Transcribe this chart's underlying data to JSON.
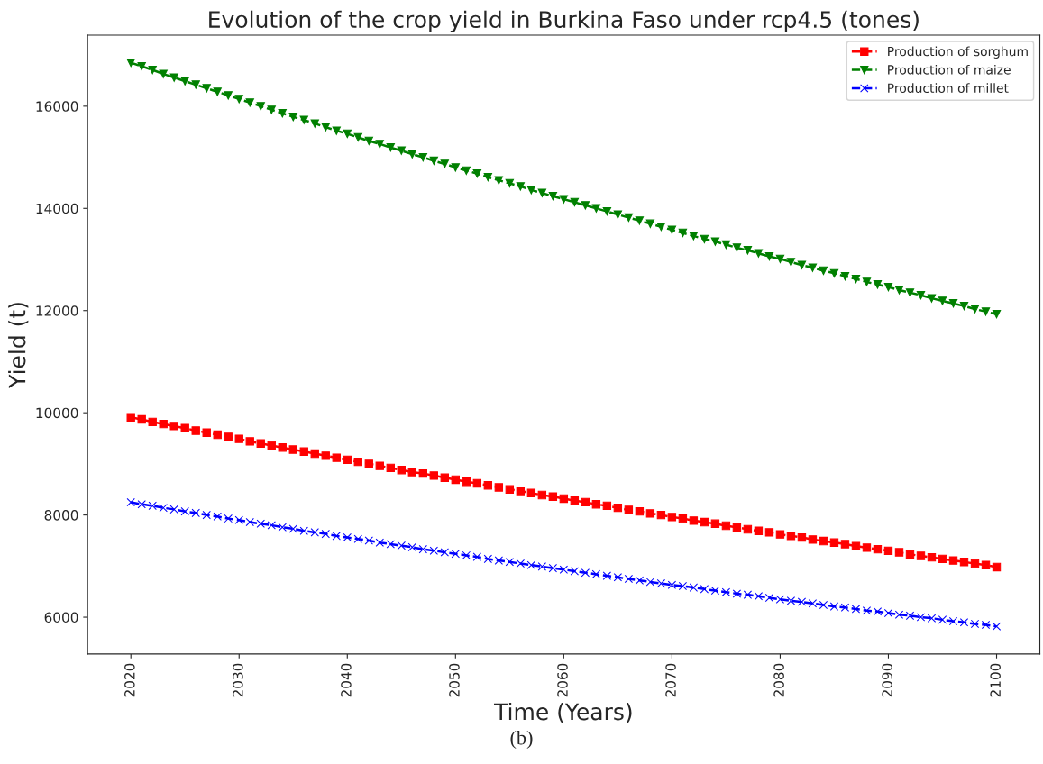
{
  "chart_data": {
    "type": "line",
    "title": "Evolution of the crop yield in Burkina Faso under rcp4.5 (tones)",
    "xlabel": "Time (Years)",
    "ylabel": "Yield (t)",
    "x": [
      2020,
      2021,
      2022,
      2023,
      2024,
      2025,
      2026,
      2027,
      2028,
      2029,
      2030,
      2031,
      2032,
      2033,
      2034,
      2035,
      2036,
      2037,
      2038,
      2039,
      2040,
      2041,
      2042,
      2043,
      2044,
      2045,
      2046,
      2047,
      2048,
      2049,
      2050,
      2051,
      2052,
      2053,
      2054,
      2055,
      2056,
      2057,
      2058,
      2059,
      2060,
      2061,
      2062,
      2063,
      2064,
      2065,
      2066,
      2067,
      2068,
      2069,
      2070,
      2071,
      2072,
      2073,
      2074,
      2075,
      2076,
      2077,
      2078,
      2079,
      2080,
      2081,
      2082,
      2083,
      2084,
      2085,
      2086,
      2087,
      2088,
      2089,
      2090,
      2091,
      2092,
      2093,
      2094,
      2095,
      2096,
      2097,
      2098,
      2099,
      2100
    ],
    "series": [
      {
        "name": "Production of sorghum",
        "color": "#ff0000",
        "marker": "square",
        "line_style": "dashed",
        "values": [
          9910,
          9870,
          9820,
          9780,
          9740,
          9700,
          9650,
          9610,
          9570,
          9530,
          9490,
          9440,
          9400,
          9360,
          9320,
          9280,
          9240,
          9200,
          9160,
          9120,
          9080,
          9040,
          9000,
          8960,
          8920,
          8880,
          8840,
          8810,
          8770,
          8730,
          8690,
          8650,
          8620,
          8580,
          8540,
          8500,
          8470,
          8430,
          8390,
          8360,
          8320,
          8280,
          8250,
          8210,
          8180,
          8140,
          8100,
          8070,
          8030,
          8000,
          7960,
          7930,
          7890,
          7860,
          7830,
          7790,
          7760,
          7720,
          7690,
          7660,
          7620,
          7590,
          7560,
          7520,
          7490,
          7460,
          7430,
          7390,
          7360,
          7330,
          7300,
          7270,
          7230,
          7200,
          7170,
          7140,
          7110,
          7080,
          7050,
          7020,
          6980
        ]
      },
      {
        "name": "Production of maize",
        "color": "#008000",
        "marker": "triangle",
        "line_style": "dashed",
        "values": [
          16850,
          16780,
          16710,
          16630,
          16560,
          16490,
          16420,
          16350,
          16280,
          16210,
          16140,
          16070,
          16000,
          15930,
          15860,
          15790,
          15730,
          15660,
          15590,
          15520,
          15460,
          15390,
          15320,
          15260,
          15190,
          15130,
          15060,
          15000,
          14930,
          14870,
          14800,
          14740,
          14680,
          14610,
          14550,
          14490,
          14430,
          14360,
          14300,
          14240,
          14180,
          14120,
          14060,
          14000,
          13940,
          13880,
          13820,
          13760,
          13700,
          13640,
          13580,
          13520,
          13460,
          13400,
          13350,
          13290,
          13230,
          13180,
          13120,
          13060,
          13010,
          12950,
          12890,
          12840,
          12780,
          12730,
          12670,
          12620,
          12560,
          12510,
          12460,
          12400,
          12350,
          12300,
          12240,
          12190,
          12140,
          12090,
          12030,
          11980,
          11930
        ]
      },
      {
        "name": "Production of millet",
        "color": "#0000ff",
        "marker": "cross",
        "line_style": "dashed",
        "values": [
          8250,
          8210,
          8180,
          8140,
          8110,
          8070,
          8040,
          8000,
          7970,
          7930,
          7900,
          7860,
          7830,
          7800,
          7760,
          7730,
          7690,
          7660,
          7630,
          7590,
          7560,
          7530,
          7500,
          7460,
          7430,
          7400,
          7370,
          7330,
          7300,
          7270,
          7240,
          7210,
          7180,
          7140,
          7110,
          7080,
          7050,
          7020,
          6990,
          6960,
          6930,
          6900,
          6870,
          6840,
          6810,
          6780,
          6750,
          6720,
          6690,
          6660,
          6630,
          6610,
          6580,
          6550,
          6520,
          6490,
          6460,
          6440,
          6410,
          6380,
          6350,
          6320,
          6300,
          6270,
          6240,
          6210,
          6190,
          6160,
          6130,
          6110,
          6080,
          6050,
          6030,
          6000,
          5980,
          5950,
          5920,
          5900,
          5870,
          5850,
          5820
        ]
      }
    ],
    "xlim": [
      2016,
      2104
    ],
    "xticks": [
      2020,
      2030,
      2040,
      2050,
      2060,
      2070,
      2080,
      2090,
      2100
    ],
    "ylim": [
      5280,
      17390
    ],
    "yticks": [
      6000,
      8000,
      10000,
      12000,
      14000,
      16000
    ],
    "grid": false,
    "legend": "top right",
    "annotations": [
      "(b)"
    ]
  }
}
